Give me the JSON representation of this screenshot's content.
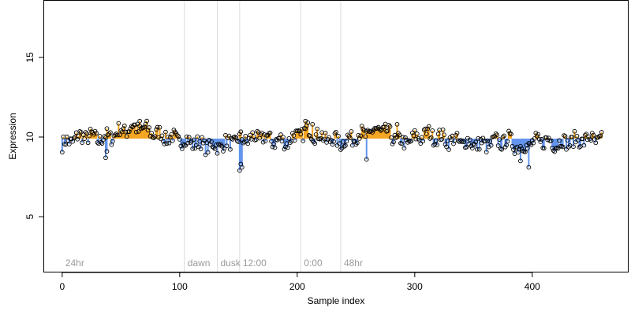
{
  "chart_data": {
    "type": "scatter",
    "title": "",
    "xlabel": "Sample index",
    "ylabel": "Expression",
    "xlim": [
      -16,
      482
    ],
    "ylim": [
      1.5,
      18.6
    ],
    "x_ticks": [
      0,
      100,
      200,
      300,
      400
    ],
    "y_ticks": [
      5,
      10,
      15
    ],
    "grid": false,
    "colors": {
      "low": "#6495ed",
      "high": "#f5a623",
      "point_edge": "#000000",
      "phase_line": "#dcdcdc",
      "phase_text": "#9a9a9a"
    },
    "reference_line_y": 9.9,
    "phase_markers": [
      {
        "label": "24hr",
        "x": 0
      },
      {
        "label": "dawn",
        "x": 104
      },
      {
        "label": "dusk",
        "x": 132
      },
      {
        "label": "12:00",
        "x": 151
      },
      {
        "label": "0:00",
        "x": 203
      },
      {
        "label": "48hr",
        "x": 237
      }
    ],
    "trend_points": [
      [
        0,
        9.5
      ],
      [
        10,
        9.9
      ],
      [
        20,
        10.1
      ],
      [
        30,
        9.9
      ],
      [
        40,
        10.0
      ],
      [
        50,
        10.4
      ],
      [
        60,
        10.6
      ],
      [
        70,
        10.5
      ],
      [
        80,
        10.2
      ],
      [
        90,
        10.0
      ],
      [
        100,
        9.8
      ],
      [
        110,
        9.7
      ],
      [
        120,
        9.5
      ],
      [
        130,
        9.4
      ],
      [
        140,
        9.6
      ],
      [
        150,
        9.8
      ],
      [
        160,
        9.9
      ],
      [
        170,
        10.0
      ],
      [
        180,
        9.8
      ],
      [
        190,
        9.7
      ],
      [
        200,
        10.1
      ],
      [
        210,
        10.4
      ],
      [
        220,
        10.0
      ],
      [
        230,
        9.8
      ],
      [
        240,
        9.7
      ],
      [
        250,
        10.1
      ],
      [
        260,
        10.2
      ],
      [
        270,
        10.5
      ],
      [
        280,
        10.1
      ],
      [
        290,
        9.6
      ],
      [
        300,
        9.9
      ],
      [
        310,
        10.2
      ],
      [
        320,
        10.0
      ],
      [
        330,
        9.8
      ],
      [
        340,
        9.7
      ],
      [
        350,
        9.6
      ],
      [
        360,
        9.5
      ],
      [
        370,
        9.7
      ],
      [
        380,
        9.8
      ],
      [
        390,
        9.3
      ],
      [
        400,
        9.6
      ],
      [
        410,
        9.8
      ],
      [
        420,
        9.6
      ],
      [
        430,
        9.7
      ],
      [
        440,
        9.8
      ],
      [
        450,
        9.9
      ],
      [
        460,
        9.7
      ]
    ],
    "n_points": 460,
    "outliers": [
      {
        "x": 37,
        "y": 8.7
      },
      {
        "x": 38,
        "y": 9.1
      },
      {
        "x": 151,
        "y": 7.9
      },
      {
        "x": 152,
        "y": 8.3
      },
      {
        "x": 153,
        "y": 8.1
      },
      {
        "x": 207,
        "y": 11.0
      },
      {
        "x": 259,
        "y": 8.6
      },
      {
        "x": 390,
        "y": 8.5
      },
      {
        "x": 397,
        "y": 8.1
      },
      {
        "x": 213,
        "y": 10.8
      },
      {
        "x": 285,
        "y": 10.8
      },
      {
        "x": 66,
        "y": 11.0
      }
    ]
  }
}
